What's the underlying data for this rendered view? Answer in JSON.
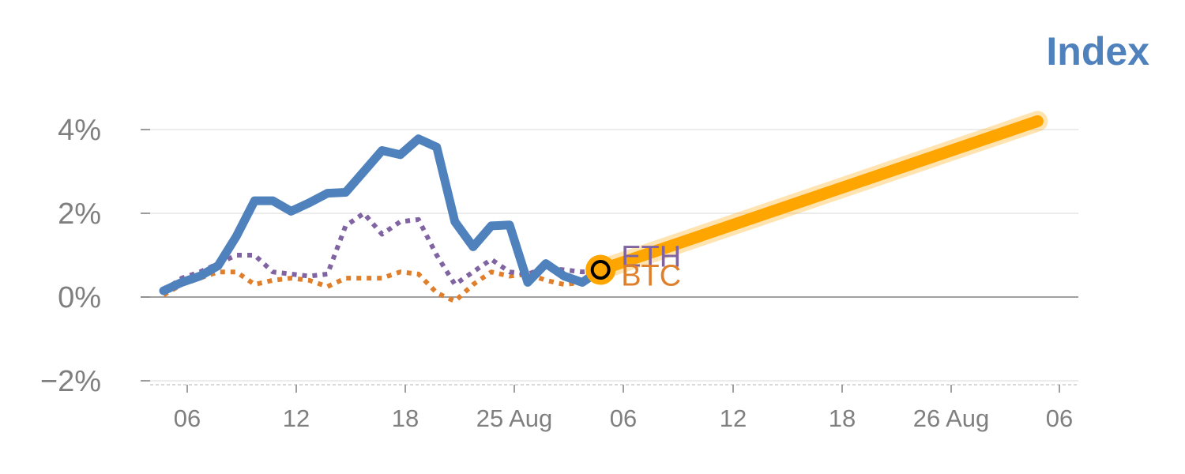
{
  "chart_data": {
    "type": "line",
    "title": "Index",
    "x_tick_labels": [
      "06",
      "12",
      "18",
      "25 Aug",
      "06",
      "12",
      "18",
      "26 Aug",
      "06"
    ],
    "y_tick_labels": [
      "4%",
      "2%",
      "0%",
      "−2%"
    ],
    "y_ticks": [
      4,
      2,
      0,
      -2
    ],
    "ylim": [
      -2.1,
      4.1
    ],
    "xlim": [
      -1.4,
      49.6
    ],
    "grid": true,
    "series": [
      {
        "name": "",
        "style": "solid",
        "color": "#4f81bd",
        "x": [
          0,
          1,
          2,
          3,
          4,
          5,
          6,
          7,
          8,
          9,
          10,
          11,
          12,
          13,
          14,
          15,
          16,
          17,
          18,
          19,
          20,
          21,
          22,
          23,
          24
        ],
        "y": [
          0.15,
          0.35,
          0.5,
          0.75,
          1.45,
          2.3,
          2.3,
          2.05,
          2.25,
          2.48,
          2.5,
          3.0,
          3.5,
          3.4,
          3.78,
          3.58,
          1.8,
          1.2,
          1.7,
          1.72,
          0.35,
          0.8,
          0.5,
          0.35,
          0.65
        ]
      },
      {
        "name": "ETH",
        "style": "dotted",
        "color": "#8064a2",
        "x": [
          0,
          1,
          2,
          3,
          4,
          5,
          6,
          7,
          8,
          9,
          10,
          11,
          12,
          13,
          14,
          15,
          16,
          17,
          18,
          19,
          20,
          21,
          22,
          23,
          24
        ],
        "y": [
          0.15,
          0.45,
          0.6,
          0.8,
          1.0,
          1.0,
          0.6,
          0.55,
          0.5,
          0.55,
          1.7,
          2.0,
          1.5,
          1.8,
          1.85,
          1.0,
          0.3,
          0.6,
          0.9,
          0.6,
          0.55,
          0.7,
          0.65,
          0.6,
          0.65
        ]
      },
      {
        "name": "BTC",
        "style": "dotted",
        "color": "#e07f2b",
        "x": [
          0,
          1,
          2,
          3,
          4,
          5,
          6,
          7,
          8,
          9,
          10,
          11,
          12,
          13,
          14,
          15,
          16,
          17,
          18,
          19,
          20,
          21,
          22,
          23,
          24
        ],
        "y": [
          0.05,
          0.3,
          0.45,
          0.6,
          0.6,
          0.3,
          0.4,
          0.45,
          0.4,
          0.25,
          0.45,
          0.45,
          0.45,
          0.6,
          0.55,
          0.1,
          -0.1,
          0.3,
          0.6,
          0.5,
          0.55,
          0.4,
          0.3,
          0.35,
          0.65
        ]
      }
    ],
    "projection": {
      "color": "#ffa500",
      "from": [
        24,
        0.65
      ],
      "to": [
        48,
        4.2
      ]
    },
    "marker": {
      "x": 24,
      "y": 0.65,
      "color": "#ffa500"
    }
  },
  "colors": {
    "title": "#4f81bd",
    "grid": "#e6e6e6",
    "zero_line": "#808080",
    "axis": "#d9d9d9",
    "tick_text": "#7f7f7f"
  }
}
